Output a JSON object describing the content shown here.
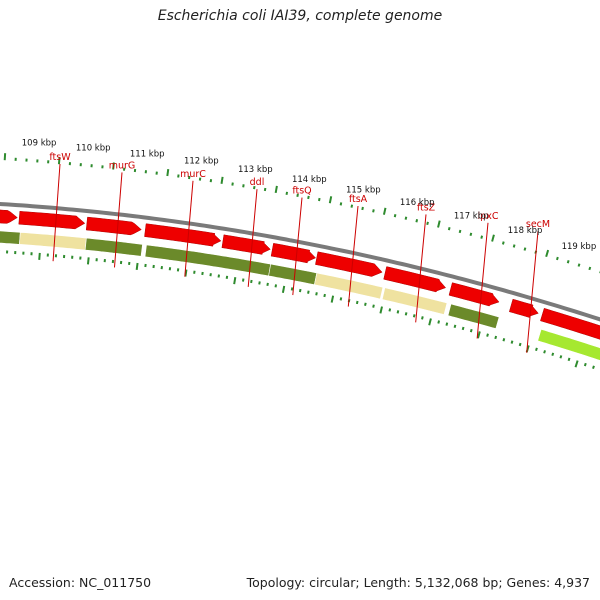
{
  "title": "Escherichia coli IAI39, complete genome",
  "footer": {
    "accession": "Accession: NC_011750",
    "summary": "Topology: circular; Length: 5,132,068 bp; Genes: 4,937"
  },
  "colors": {
    "gene_label": "#cc0000",
    "cds_arrow": "#ee0000",
    "feature_dark": "#6b8a2a",
    "feature_pale": "#efe2a0",
    "feature_bright": "#a6e830",
    "tick": "#2e8b2e",
    "backbone": "#7a7a7a"
  },
  "genes": [
    {
      "name": "ftsW"
    },
    {
      "name": "murG"
    },
    {
      "name": "murC"
    },
    {
      "name": "ddl"
    },
    {
      "name": "ftsQ"
    },
    {
      "name": "ftsA"
    },
    {
      "name": "ftsZ"
    },
    {
      "name": "lpxC"
    },
    {
      "name": "secM"
    }
  ],
  "kbp_labels": [
    "109 kbp",
    "110 kbp",
    "111 kbp",
    "112 kbp",
    "113 kbp",
    "114 kbp",
    "115 kbp",
    "116 kbp",
    "117 kbp",
    "118 kbp",
    "119 kbp"
  ]
}
